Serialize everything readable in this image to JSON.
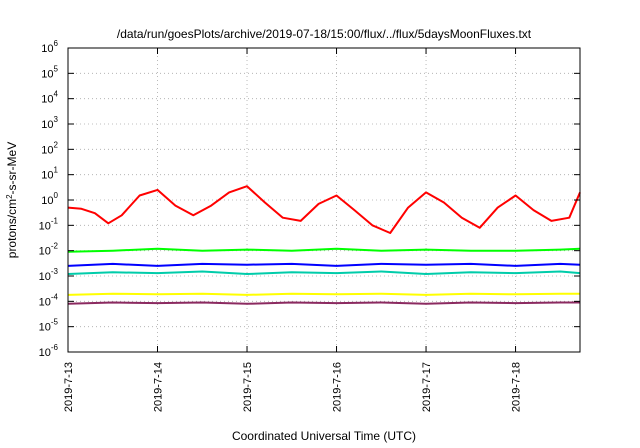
{
  "chart_data": {
    "type": "line",
    "title": "/data/run/goesPlots/archive/2019-07-18/15:00/flux/../flux/5daysMoonFluxes.txt",
    "xlabel": "Coordinated Universal Time (UTC)",
    "ylabel": "protons/cm2-s-sr-MeV",
    "ylabel_parts": [
      "protons/cm",
      "2",
      "-s-sr-MeV"
    ],
    "x_ticks": [
      "2019-7-13",
      "2019-7-14",
      "2019-7-15",
      "2019-7-16",
      "2019-7-17",
      "2019-7-18"
    ],
    "xlim": [
      0,
      5.72
    ],
    "ylim": [
      1e-06,
      1000000.0
    ],
    "y_scale": "log",
    "y_ticks": [
      {
        "base": "10",
        "exp": "6",
        "value": 1000000.0
      },
      {
        "base": "10",
        "exp": "5",
        "value": 100000.0
      },
      {
        "base": "10",
        "exp": "4",
        "value": 10000.0
      },
      {
        "base": "10",
        "exp": "3",
        "value": 1000.0
      },
      {
        "base": "10",
        "exp": "2",
        "value": 100.0
      },
      {
        "base": "10",
        "exp": "1",
        "value": 10.0
      },
      {
        "base": "10",
        "exp": "0",
        "value": 1.0
      },
      {
        "base": "10",
        "exp": "-1",
        "value": 0.1
      },
      {
        "base": "10",
        "exp": "-2",
        "value": 0.01
      },
      {
        "base": "10",
        "exp": "-3",
        "value": 0.001
      },
      {
        "base": "10",
        "exp": "-4",
        "value": 0.0001
      },
      {
        "base": "10",
        "exp": "-5",
        "value": 1e-05
      },
      {
        "base": "10",
        "exp": "-6",
        "value": 1e-06
      }
    ],
    "grid": true,
    "series": [
      {
        "color": "#ff0000",
        "x": [
          0,
          0.15,
          0.3,
          0.45,
          0.6,
          0.8,
          1.0,
          1.2,
          1.4,
          1.6,
          1.8,
          2.0,
          2.2,
          2.4,
          2.6,
          2.8,
          3.0,
          3.2,
          3.4,
          3.6,
          3.8,
          4.0,
          4.2,
          4.4,
          4.6,
          4.8,
          5.0,
          5.2,
          5.4,
          5.6,
          5.72
        ],
        "y": [
          0.5,
          0.45,
          0.3,
          0.12,
          0.25,
          1.5,
          2.5,
          0.6,
          0.25,
          0.6,
          2.0,
          3.5,
          0.8,
          0.2,
          0.15,
          0.7,
          1.5,
          0.4,
          0.1,
          0.05,
          0.5,
          2.0,
          0.8,
          0.2,
          0.08,
          0.5,
          1.5,
          0.4,
          0.15,
          0.2,
          2.0
        ]
      },
      {
        "color": "#00ff00",
        "x": [
          0,
          0.5,
          1.0,
          1.5,
          2.0,
          2.5,
          3.0,
          3.5,
          4.0,
          4.5,
          5.0,
          5.5,
          5.72
        ],
        "y": [
          0.009,
          0.01,
          0.012,
          0.01,
          0.011,
          0.01,
          0.012,
          0.01,
          0.011,
          0.01,
          0.01,
          0.011,
          0.012
        ]
      },
      {
        "color": "#0000ff",
        "x": [
          0,
          0.5,
          1.0,
          1.5,
          2.0,
          2.5,
          3.0,
          3.5,
          4.0,
          4.5,
          5.0,
          5.5,
          5.72
        ],
        "y": [
          0.0025,
          0.003,
          0.0025,
          0.003,
          0.0028,
          0.003,
          0.0025,
          0.003,
          0.0028,
          0.003,
          0.0025,
          0.003,
          0.0028
        ]
      },
      {
        "color": "#00ccaa",
        "x": [
          0,
          0.5,
          1.0,
          1.5,
          2.0,
          2.5,
          3.0,
          3.5,
          4.0,
          4.5,
          5.0,
          5.5,
          5.72
        ],
        "y": [
          0.0012,
          0.0014,
          0.0013,
          0.0015,
          0.0012,
          0.0014,
          0.0013,
          0.0015,
          0.0012,
          0.0014,
          0.0013,
          0.0015,
          0.0013
        ]
      },
      {
        "color": "#ffff00",
        "x": [
          0,
          0.5,
          1.0,
          1.5,
          2.0,
          2.5,
          3.0,
          3.5,
          4.0,
          4.5,
          5.0,
          5.5,
          5.72
        ],
        "y": [
          0.00018,
          0.0002,
          0.00019,
          0.0002,
          0.00018,
          0.0002,
          0.00019,
          0.0002,
          0.00018,
          0.0002,
          0.00019,
          0.0002,
          0.0002
        ]
      },
      {
        "color": "#8b2a60",
        "x": [
          0,
          0.5,
          1.0,
          1.5,
          2.0,
          2.5,
          3.0,
          3.5,
          4.0,
          4.5,
          5.0,
          5.5,
          5.72
        ],
        "y": [
          8e-05,
          9e-05,
          8.5e-05,
          9e-05,
          8e-05,
          9e-05,
          8.5e-05,
          9e-05,
          8e-05,
          9e-05,
          8.5e-05,
          9e-05,
          9e-05
        ]
      }
    ]
  }
}
